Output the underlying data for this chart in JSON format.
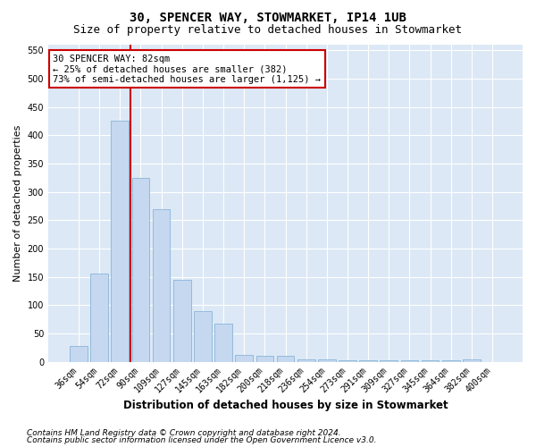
{
  "title": "30, SPENCER WAY, STOWMARKET, IP14 1UB",
  "subtitle": "Size of property relative to detached houses in Stowmarket",
  "xlabel": "Distribution of detached houses by size in Stowmarket",
  "ylabel": "Number of detached properties",
  "categories": [
    "36sqm",
    "54sqm",
    "72sqm",
    "90sqm",
    "109sqm",
    "127sqm",
    "145sqm",
    "163sqm",
    "182sqm",
    "200sqm",
    "218sqm",
    "236sqm",
    "254sqm",
    "273sqm",
    "291sqm",
    "309sqm",
    "327sqm",
    "345sqm",
    "364sqm",
    "382sqm",
    "400sqm"
  ],
  "values": [
    27,
    155,
    425,
    325,
    270,
    145,
    90,
    68,
    12,
    10,
    10,
    4,
    4,
    2,
    2,
    2,
    2,
    2,
    2,
    4,
    0
  ],
  "bar_color": "#c5d8f0",
  "bar_edge_color": "#8ab4d8",
  "vline_color": "#cc0000",
  "annotation_text": "30 SPENCER WAY: 82sqm\n← 25% of detached houses are smaller (382)\n73% of semi-detached houses are larger (1,125) →",
  "annotation_box_color": "#ffffff",
  "annotation_box_edge": "#cc0000",
  "ylim": [
    0,
    560
  ],
  "yticks": [
    0,
    50,
    100,
    150,
    200,
    250,
    300,
    350,
    400,
    450,
    500,
    550
  ],
  "footer1": "Contains HM Land Registry data © Crown copyright and database right 2024.",
  "footer2": "Contains public sector information licensed under the Open Government Licence v3.0.",
  "bg_color": "#ffffff",
  "plot_bg_color": "#dce8f5",
  "grid_color": "#ffffff",
  "title_fontsize": 10,
  "subtitle_fontsize": 9,
  "xlabel_fontsize": 8.5,
  "ylabel_fontsize": 8,
  "tick_fontsize": 7,
  "annotation_fontsize": 7.5,
  "footer_fontsize": 6.5
}
